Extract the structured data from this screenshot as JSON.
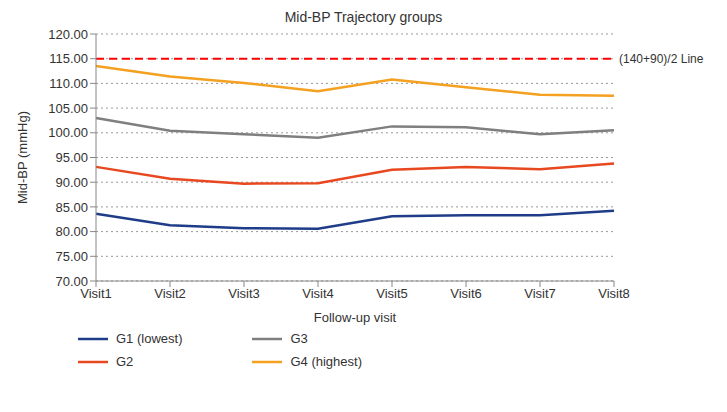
{
  "chart_data": {
    "type": "line",
    "title": "Mid-BP Trajectory groups",
    "x_label": "Follow-up visit",
    "y_label": "Mid-BP (mmHg)",
    "categories": [
      "Visit1",
      "Visit2",
      "Visit3",
      "Visit4",
      "Visit5",
      "Visit6",
      "Visit7",
      "Visit8"
    ],
    "series": [
      {
        "name": "G1 (lowest)",
        "color": "#1f3c88",
        "values": [
          83.6,
          81.3,
          80.7,
          80.6,
          83.1,
          83.3,
          83.3,
          84.2
        ]
      },
      {
        "name": "G2",
        "color": "#e8481f",
        "values": [
          93.1,
          90.7,
          89.7,
          89.8,
          92.5,
          93.1,
          92.6,
          93.8
        ]
      },
      {
        "name": "G3",
        "color": "#7f7f7f",
        "values": [
          103.0,
          100.4,
          99.7,
          99.0,
          101.3,
          101.1,
          99.7,
          100.5
        ]
      },
      {
        "name": "G4 (highest)",
        "color": "#f4a020",
        "values": [
          113.5,
          111.4,
          110.1,
          108.4,
          110.8,
          109.2,
          107.7,
          107.5
        ]
      }
    ],
    "ylim": [
      70,
      120
    ],
    "yticks": [
      {
        "value": 70,
        "label": "70.00"
      },
      {
        "value": 75,
        "label": "75.00"
      },
      {
        "value": 80,
        "label": "80.00"
      },
      {
        "value": 85,
        "label": "85.00"
      },
      {
        "value": 90,
        "label": "90.00"
      },
      {
        "value": 95,
        "label": "95.00"
      },
      {
        "value": 100,
        "label": "100.00"
      },
      {
        "value": 105,
        "label": "105.00"
      },
      {
        "value": 110,
        "label": "110.00"
      },
      {
        "value": 115,
        "label": "115.00"
      },
      {
        "value": 120,
        "label": "120.00"
      }
    ],
    "grid": true,
    "legend": "bottom",
    "annotations": [
      {
        "y": 115,
        "label": "(140+90)/2 Line",
        "color": "#ff0000",
        "line_style": "dashed"
      }
    ]
  }
}
